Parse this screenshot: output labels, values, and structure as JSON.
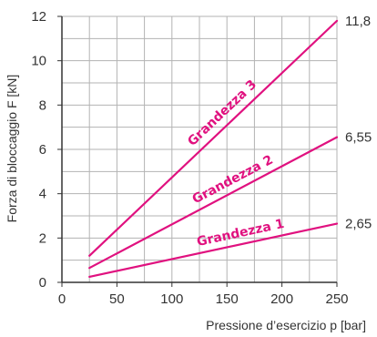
{
  "chart_data": {
    "type": "line",
    "title": "",
    "xlabel": "Pressione d’esercizio p [bar]",
    "ylabel": "Forza di bloccaggio F [kN]",
    "xlim": [
      0,
      250
    ],
    "ylim": [
      0,
      12
    ],
    "xticks": [
      "0",
      "50",
      "100",
      "150",
      "200",
      "250"
    ],
    "yticks": [
      "0",
      "2",
      "4",
      "6",
      "8",
      "10",
      "12"
    ],
    "grid": true,
    "legend": "none",
    "series": [
      {
        "name": "Grandezza 1",
        "x": [
          25,
          250
        ],
        "y": [
          0.25,
          2.65
        ],
        "end_label": "2,65"
      },
      {
        "name": "Grandezza 2",
        "x": [
          25,
          250
        ],
        "y": [
          0.65,
          6.55
        ],
        "end_label": "6,55"
      },
      {
        "name": "Grandezza 3",
        "x": [
          25,
          250
        ],
        "y": [
          1.2,
          11.8
        ],
        "end_label": "11,8"
      }
    ],
    "colors": {
      "series": "#e0117f",
      "grid": "#b3b3b3",
      "axis": "#333333"
    }
  }
}
